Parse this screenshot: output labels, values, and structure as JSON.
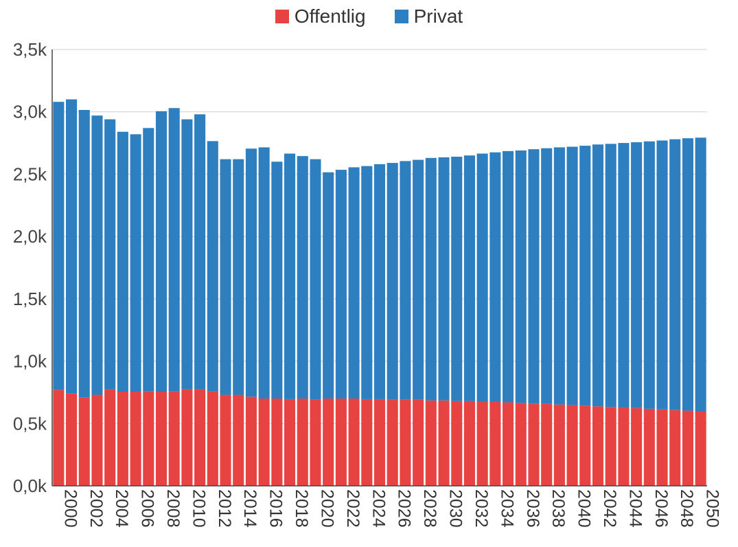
{
  "legend": {
    "offentlig_label": "Offentlig",
    "privat_label": "Privat"
  },
  "colors": {
    "offentlig": "#e84343",
    "privat": "#2e7fc0",
    "grid": "#d0d0d0",
    "axis": "#444444"
  },
  "chart_data": {
    "type": "bar",
    "stacked": true,
    "title": "",
    "xlabel": "",
    "ylabel": "",
    "ylim": [
      0,
      3500
    ],
    "y_ticks": [
      0,
      500,
      1000,
      1500,
      2000,
      2500,
      3000,
      3500
    ],
    "y_tick_labels": [
      "0,0k",
      "0,5k",
      "1,0k",
      "1,5k",
      "2,0k",
      "2,5k",
      "3,0k",
      "3,5k"
    ],
    "categories": [
      "2000",
      "2001",
      "2002",
      "2003",
      "2004",
      "2005",
      "2006",
      "2007",
      "2008",
      "2009",
      "2010",
      "2011",
      "2012",
      "2013",
      "2014",
      "2015",
      "2016",
      "2017",
      "2018",
      "2019",
      "2020",
      "2021",
      "2022",
      "2023",
      "2024",
      "2025",
      "2026",
      "2027",
      "2028",
      "2029",
      "2030",
      "2031",
      "2032",
      "2033",
      "2034",
      "2035",
      "2036",
      "2037",
      "2038",
      "2039",
      "2040",
      "2041",
      "2042",
      "2043",
      "2044",
      "2045",
      "2046",
      "2047",
      "2048",
      "2049",
      "2050"
    ],
    "x_tick_labels": [
      "2000",
      "",
      "2002",
      "",
      "2004",
      "",
      "2006",
      "",
      "2008",
      "",
      "2010",
      "",
      "2012",
      "",
      "2014",
      "",
      "2016",
      "",
      "2018",
      "",
      "2020",
      "",
      "2022",
      "",
      "2024",
      "",
      "2026",
      "",
      "2028",
      "",
      "2030",
      "",
      "2032",
      "",
      "2034",
      "",
      "2036",
      "",
      "2038",
      "",
      "2040",
      "",
      "2042",
      "",
      "2044",
      "",
      "2046",
      "",
      "2048",
      "",
      "2050"
    ],
    "series": [
      {
        "name": "Offentlig",
        "values": [
          770,
          740,
          710,
          730,
          775,
          755,
          755,
          760,
          755,
          760,
          775,
          775,
          760,
          730,
          730,
          715,
          700,
          700,
          695,
          700,
          690,
          700,
          700,
          700,
          695,
          695,
          690,
          690,
          690,
          685,
          685,
          680,
          680,
          675,
          675,
          670,
          665,
          660,
          658,
          652,
          648,
          643,
          638,
          633,
          628,
          624,
          618,
          613,
          608,
          603,
          598
        ]
      },
      {
        "name": "Privat",
        "values": [
          2310,
          2360,
          2305,
          2240,
          2165,
          2085,
          2065,
          2110,
          2250,
          2270,
          2165,
          2205,
          2005,
          1890,
          1890,
          1990,
          2015,
          1900,
          1970,
          1945,
          1930,
          1815,
          1835,
          1855,
          1870,
          1885,
          1900,
          1915,
          1925,
          1945,
          1950,
          1960,
          1970,
          1990,
          2000,
          2015,
          2025,
          2040,
          2050,
          2063,
          2072,
          2085,
          2100,
          2110,
          2122,
          2132,
          2145,
          2157,
          2172,
          2185,
          2195
        ]
      }
    ]
  }
}
